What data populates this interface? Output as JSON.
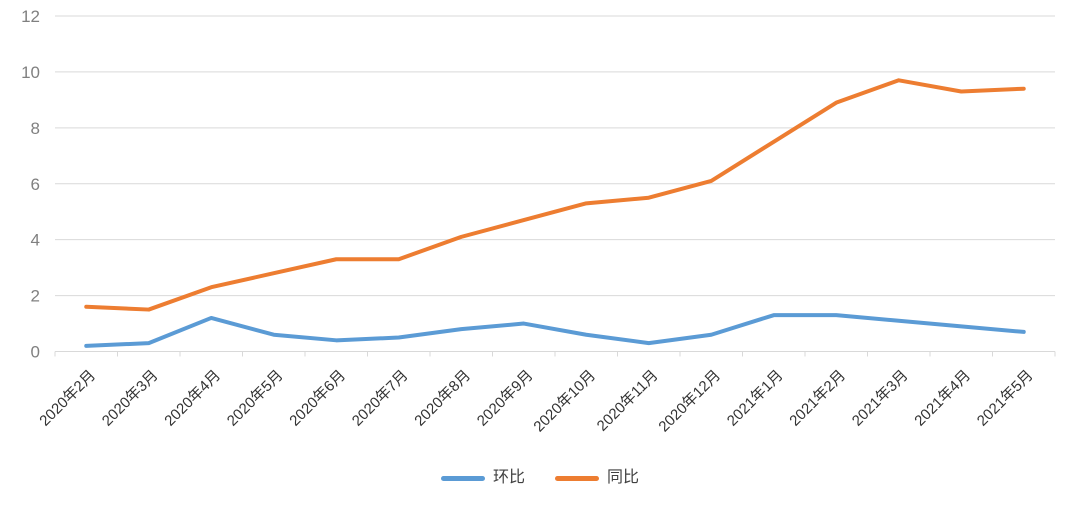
{
  "chart_data": {
    "type": "line",
    "categories": [
      "2020年2月",
      "2020年3月",
      "2020年4月",
      "2020年5月",
      "2020年6月",
      "2020年7月",
      "2020年8月",
      "2020年9月",
      "2020年10月",
      "2020年11月",
      "2020年12月",
      "2021年1月",
      "2021年2月",
      "2021年3月",
      "2021年4月",
      "2021年5月"
    ],
    "series": [
      {
        "id": "mom",
        "name": "环比",
        "color": "#5B9BD5",
        "values": [
          0.2,
          0.3,
          1.2,
          0.6,
          0.4,
          0.5,
          0.8,
          1.0,
          0.6,
          0.3,
          0.6,
          1.3,
          1.3,
          1.1,
          0.9,
          0.7
        ]
      },
      {
        "id": "yoy",
        "name": "同比",
        "color": "#ED7D31",
        "values": [
          1.6,
          1.5,
          2.3,
          2.8,
          3.3,
          3.3,
          4.1,
          4.7,
          5.3,
          5.5,
          6.1,
          7.5,
          8.9,
          9.7,
          9.3,
          9.4
        ]
      }
    ],
    "title": "",
    "xlabel": "",
    "ylabel": "",
    "ylim": [
      0,
      12
    ],
    "yticks": [
      0,
      2,
      4,
      6,
      8,
      10,
      12
    ],
    "grid": true,
    "legend_position": "bottom"
  },
  "colors": {
    "grid": "#D9D9D9",
    "axis": "#D9D9D9",
    "y_tick_label": "#808080",
    "x_tick_label": "#333333",
    "legend_text": "#404040"
  },
  "style": {
    "line_width": 4,
    "y_label_font_size": 17,
    "x_label_font_size": 15,
    "x_label_rotation": -45
  }
}
